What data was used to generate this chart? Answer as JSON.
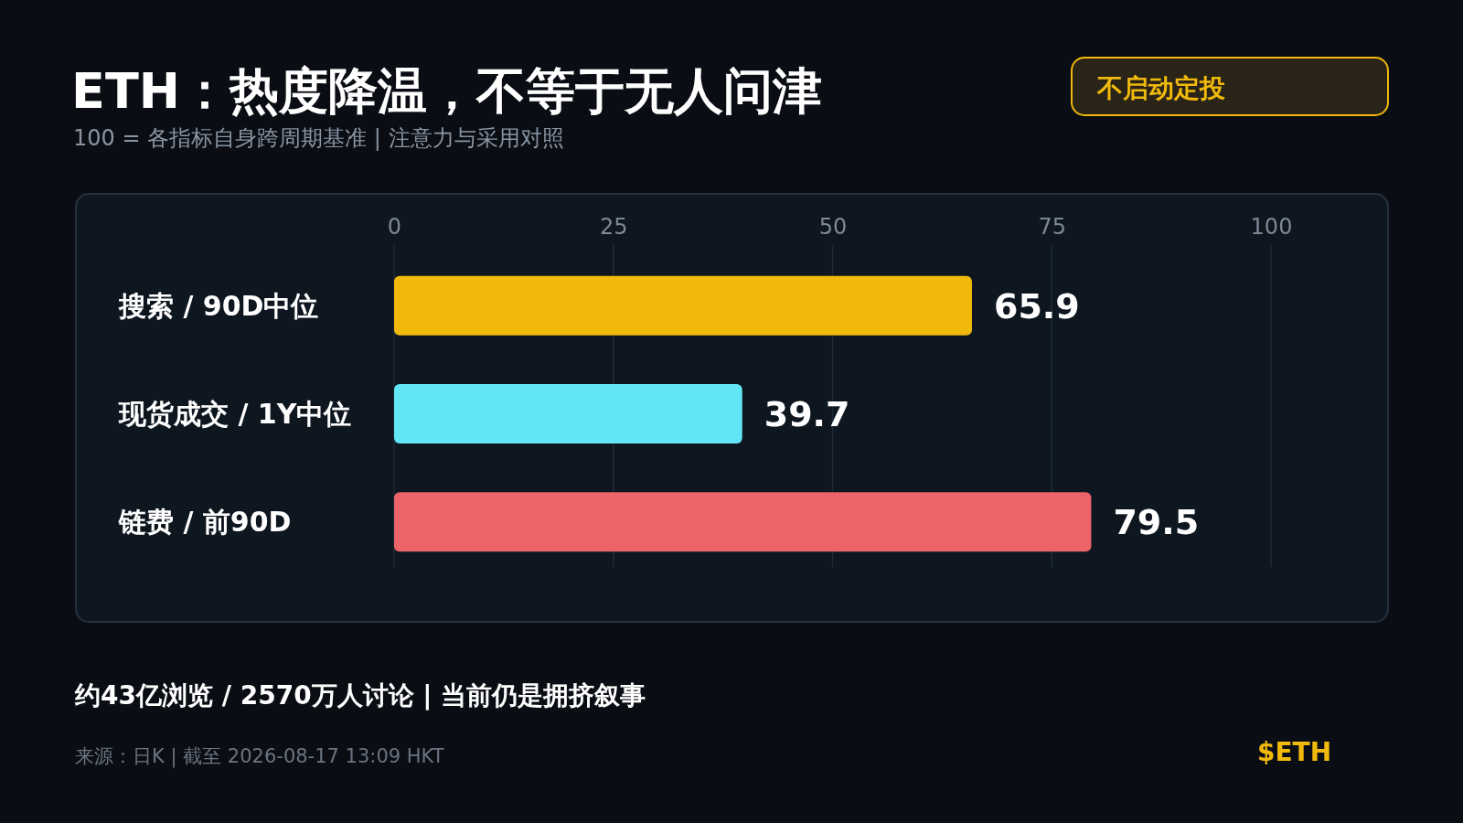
{
  "chart_data": {
    "type": "bar",
    "orientation": "horizontal",
    "title": "ETH：热度降温，不等于无人问津",
    "subtitle": "100 = 各指标自身跨周期基准 | 注意力与采用对照",
    "categories": [
      "搜索 / 90D中位",
      "现货成交 / 1Y中位",
      "链费 / 前90D"
    ],
    "values": [
      65.9,
      39.7,
      79.5
    ],
    "colors": [
      "#f0b90b",
      "#62e6f5",
      "#ed6468"
    ],
    "xlim": [
      0,
      100
    ],
    "xticks": [
      0,
      25,
      50,
      75,
      100
    ],
    "grid": "x",
    "data_labels": true,
    "annotations": [
      "不启动定投",
      "约43亿浏览 / 2570万人讨论 | 当前仍是拥挤叙事",
      "来源：日K | 截至 2026-08-17 13:09 HKT",
      "$ETH"
    ]
  }
}
